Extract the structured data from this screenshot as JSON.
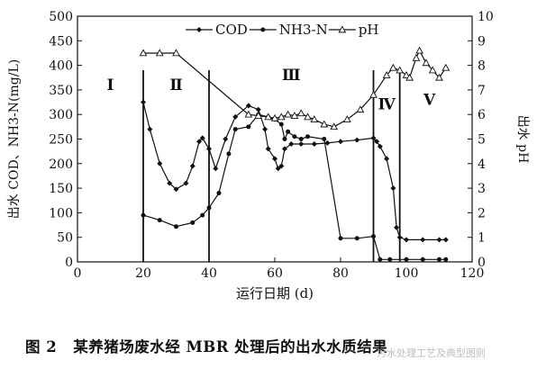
{
  "chart_data": {
    "type": "line",
    "xlabel": "运行日期 (d)",
    "ylabel_left": "出水 COD、NH3-N(mg/L)",
    "ylabel_right": "出水 pH",
    "xlim": [
      0,
      120
    ],
    "ylim_left": [
      0,
      500
    ],
    "ylim_right": [
      0,
      10
    ],
    "xticks": [
      0,
      20,
      40,
      60,
      80,
      100,
      120
    ],
    "yticks_left": [
      0,
      50,
      100,
      150,
      200,
      250,
      300,
      350,
      400,
      450,
      500
    ],
    "yticks_right": [
      0,
      1,
      2,
      3,
      4,
      5,
      6,
      7,
      8,
      9,
      10
    ],
    "grid": false,
    "legend_position": "top-center",
    "phase_lines_x": [
      20,
      40,
      90,
      98
    ],
    "phases": [
      {
        "label": "Ⅰ",
        "x": 10,
        "y": 350
      },
      {
        "label": "Ⅱ",
        "x": 30,
        "y": 350
      },
      {
        "label": "Ⅲ",
        "x": 65,
        "y": 370
      },
      {
        "label": "Ⅳ",
        "x": 94,
        "y": 310
      },
      {
        "label": "Ⅴ",
        "x": 107,
        "y": 320
      }
    ],
    "series": [
      {
        "name": "COD",
        "axis": "left",
        "marker": "diamond",
        "points": [
          [
            20,
            325
          ],
          [
            22,
            270
          ],
          [
            25,
            200
          ],
          [
            28,
            160
          ],
          [
            30,
            148
          ],
          [
            33,
            160
          ],
          [
            35,
            195
          ],
          [
            37,
            245
          ],
          [
            38,
            252
          ],
          [
            40,
            230
          ],
          [
            42,
            190
          ],
          [
            45,
            250
          ],
          [
            48,
            295
          ],
          [
            52,
            318
          ],
          [
            55,
            310
          ],
          [
            57,
            270
          ],
          [
            58,
            230
          ],
          [
            60,
            210
          ],
          [
            61,
            190
          ],
          [
            62,
            195
          ],
          [
            63,
            230
          ],
          [
            65,
            240
          ],
          [
            68,
            240
          ],
          [
            72,
            240
          ],
          [
            76,
            242
          ],
          [
            80,
            245
          ],
          [
            85,
            248
          ],
          [
            90,
            252
          ],
          [
            91,
            245
          ],
          [
            92,
            235
          ],
          [
            94,
            210
          ],
          [
            96,
            150
          ],
          [
            97,
            70
          ],
          [
            98,
            50
          ],
          [
            100,
            45
          ],
          [
            105,
            45
          ],
          [
            110,
            45
          ],
          [
            112,
            45
          ]
        ]
      },
      {
        "name": "NH3-N",
        "axis": "left",
        "marker": "circle",
        "points": [
          [
            20,
            95
          ],
          [
            25,
            85
          ],
          [
            30,
            72
          ],
          [
            35,
            80
          ],
          [
            38,
            95
          ],
          [
            40,
            110
          ],
          [
            43,
            140
          ],
          [
            46,
            220
          ],
          [
            48,
            270
          ],
          [
            52,
            275
          ],
          [
            55,
            300
          ],
          [
            58,
            295
          ],
          [
            60,
            290
          ],
          [
            62,
            280
          ],
          [
            63,
            250
          ],
          [
            64,
            265
          ],
          [
            66,
            255
          ],
          [
            68,
            250
          ],
          [
            70,
            255
          ],
          [
            75,
            250
          ],
          [
            80,
            48
          ],
          [
            85,
            48
          ],
          [
            90,
            52
          ],
          [
            92,
            5
          ],
          [
            95,
            5
          ],
          [
            100,
            5
          ],
          [
            105,
            5
          ],
          [
            110,
            5
          ],
          [
            112,
            5
          ]
        ]
      },
      {
        "name": "pH",
        "axis": "right",
        "marker": "triangle",
        "points": [
          [
            20,
            8.5
          ],
          [
            25,
            8.5
          ],
          [
            30,
            8.5
          ],
          [
            52,
            6.0
          ],
          [
            55,
            5.95
          ],
          [
            58,
            5.9
          ],
          [
            60,
            5.85
          ],
          [
            62,
            5.9
          ],
          [
            64,
            6.0
          ],
          [
            66,
            5.95
          ],
          [
            68,
            6.05
          ],
          [
            70,
            5.9
          ],
          [
            72,
            5.8
          ],
          [
            75,
            5.6
          ],
          [
            78,
            5.5
          ],
          [
            82,
            5.8
          ],
          [
            86,
            6.2
          ],
          [
            90,
            6.8
          ],
          [
            94,
            7.6
          ],
          [
            96,
            7.9
          ],
          [
            98,
            7.8
          ],
          [
            100,
            7.6
          ],
          [
            101,
            7.5
          ],
          [
            103,
            8.3
          ],
          [
            104,
            8.6
          ],
          [
            106,
            8.1
          ],
          [
            108,
            7.8
          ],
          [
            110,
            7.5
          ],
          [
            112,
            7.9
          ]
        ]
      }
    ]
  },
  "caption": {
    "number": "图 2",
    "text": "某养猪场废水经 MBR 处理后的出水水质结果"
  },
  "watermark": "污水处理工艺及典型图则"
}
